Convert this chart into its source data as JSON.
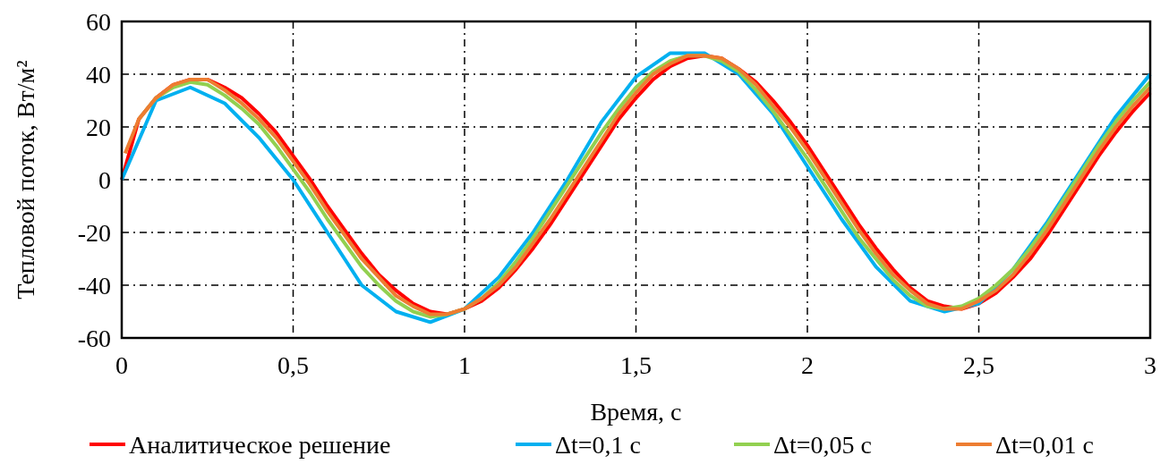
{
  "chart_data": {
    "type": "line",
    "xlabel": "Время, с",
    "ylabel": "Тепловой поток, Вт/м²",
    "xlim": [
      0,
      3
    ],
    "ylim": [
      -60,
      60
    ],
    "xticks": [
      0,
      {
        "value": 0.5,
        "label": "0,5"
      },
      1,
      {
        "value": 1.5,
        "label": "1,5"
      },
      2,
      {
        "value": 2.5,
        "label": "2,5"
      },
      3
    ],
    "yticks": [
      -60,
      -40,
      -20,
      0,
      20,
      40,
      60
    ],
    "grid": true,
    "legend": "bottom",
    "line_style": "solid",
    "marker": "none",
    "series": [
      {
        "name": "Аналитическое решение",
        "color": "#ff0000",
        "x": [
          0,
          0.05,
          0.1,
          0.15,
          0.2,
          0.25,
          0.3,
          0.35,
          0.4,
          0.45,
          0.5,
          0.55,
          0.6,
          0.65,
          0.7,
          0.75,
          0.8,
          0.85,
          0.9,
          0.95,
          1,
          1.05,
          1.1,
          1.15,
          1.2,
          1.25,
          1.3,
          1.35,
          1.4,
          1.45,
          1.5,
          1.55,
          1.6,
          1.65,
          1.7,
          1.75,
          1.8,
          1.85,
          1.9,
          1.95,
          2,
          2.05,
          2.1,
          2.15,
          2.2,
          2.25,
          2.3,
          2.35,
          2.4,
          2.45,
          2.5,
          2.55,
          2.6,
          2.65,
          2.7,
          2.75,
          2.8,
          2.85,
          2.9,
          2.95,
          3
        ],
        "values": [
          0,
          23,
          31,
          36,
          38,
          38,
          35,
          31,
          25,
          18,
          9,
          0,
          -10,
          -19,
          -28,
          -36,
          -42,
          -47,
          -50,
          -51,
          -49,
          -46,
          -41,
          -34,
          -26,
          -17,
          -7,
          3,
          13,
          23,
          31,
          38,
          43,
          46,
          47,
          46,
          42,
          37,
          30,
          22,
          13,
          3,
          -7,
          -17,
          -26,
          -34,
          -41,
          -46,
          -48,
          -49,
          -47,
          -43,
          -37,
          -30,
          -21,
          -11,
          -1,
          9,
          18,
          26,
          33
        ]
      },
      {
        "name": "Δt=0,1 с",
        "color": "#00b0f0",
        "x": [
          0,
          0.1,
          0.2,
          0.3,
          0.4,
          0.5,
          0.6,
          0.7,
          0.8,
          0.9,
          1,
          1.1,
          1.2,
          1.3,
          1.4,
          1.5,
          1.6,
          1.7,
          1.8,
          1.9,
          2,
          2.1,
          2.2,
          2.3,
          2.4,
          2.5,
          2.6,
          2.7,
          2.8,
          2.9,
          3
        ],
        "values": [
          0,
          30,
          35,
          29,
          16,
          0,
          -20,
          -40,
          -50,
          -54,
          -49,
          -37,
          -20,
          0,
          22,
          39,
          48,
          48,
          40,
          25,
          5,
          -15,
          -33,
          -46,
          -50,
          -47,
          -34,
          -16,
          4,
          24,
          40
        ]
      },
      {
        "name": "Δt=0,05 с",
        "color": "#92d050",
        "x": [
          0.05,
          0.1,
          0.15,
          0.2,
          0.25,
          0.3,
          0.35,
          0.4,
          0.45,
          0.5,
          0.55,
          0.6,
          0.65,
          0.7,
          0.75,
          0.8,
          0.85,
          0.9,
          0.95,
          1,
          1.05,
          1.1,
          1.15,
          1.2,
          1.25,
          1.3,
          1.35,
          1.4,
          1.45,
          1.5,
          1.55,
          1.6,
          1.65,
          1.7,
          1.75,
          1.8,
          1.85,
          1.9,
          1.95,
          2,
          2.05,
          2.1,
          2.15,
          2.2,
          2.25,
          2.3,
          2.35,
          2.4,
          2.45,
          2.5,
          2.55,
          2.6,
          2.65,
          2.7,
          2.75,
          2.8,
          2.85,
          2.9,
          2.95,
          3
        ],
        "values": [
          23,
          31,
          35,
          37,
          36,
          32,
          27,
          21,
          13,
          4,
          -5,
          -15,
          -24,
          -33,
          -40,
          -46,
          -50,
          -52,
          -51,
          -49,
          -45,
          -39,
          -31,
          -22,
          -12,
          -2,
          8,
          18,
          27,
          35,
          41,
          45,
          47,
          47,
          45,
          41,
          34,
          26,
          17,
          8,
          -2,
          -12,
          -22,
          -30,
          -38,
          -44,
          -48,
          -49,
          -48,
          -45,
          -40,
          -34,
          -26,
          -17,
          -7,
          3,
          13,
          22,
          30,
          37
        ]
      },
      {
        "name": "Δt=0,01 с",
        "color": "#ed7d31",
        "x": [
          0.01,
          0.05,
          0.1,
          0.15,
          0.2,
          0.25,
          0.3,
          0.35,
          0.4,
          0.45,
          0.5,
          0.55,
          0.6,
          0.65,
          0.7,
          0.75,
          0.8,
          0.85,
          0.9,
          0.95,
          1,
          1.05,
          1.1,
          1.15,
          1.2,
          1.25,
          1.3,
          1.35,
          1.4,
          1.45,
          1.5,
          1.55,
          1.6,
          1.65,
          1.7,
          1.75,
          1.8,
          1.85,
          1.9,
          1.95,
          2,
          2.05,
          2.1,
          2.15,
          2.2,
          2.25,
          2.3,
          2.35,
          2.4,
          2.45,
          2.5,
          2.55,
          2.6,
          2.65,
          2.7,
          2.75,
          2.8,
          2.85,
          2.9,
          2.95,
          3
        ],
        "values": [
          10,
          23,
          31,
          36,
          38,
          38,
          34,
          29,
          23,
          16,
          7,
          -2,
          -12,
          -21,
          -30,
          -37,
          -44,
          -48,
          -51,
          -51,
          -49,
          -45,
          -40,
          -33,
          -24,
          -15,
          -5,
          5,
          15,
          25,
          33,
          40,
          44,
          47,
          47,
          46,
          42,
          36,
          28,
          20,
          11,
          1,
          -9,
          -19,
          -28,
          -36,
          -42,
          -47,
          -49,
          -49,
          -46,
          -42,
          -36,
          -28,
          -19,
          -9,
          1,
          11,
          20,
          28,
          35
        ]
      }
    ]
  }
}
